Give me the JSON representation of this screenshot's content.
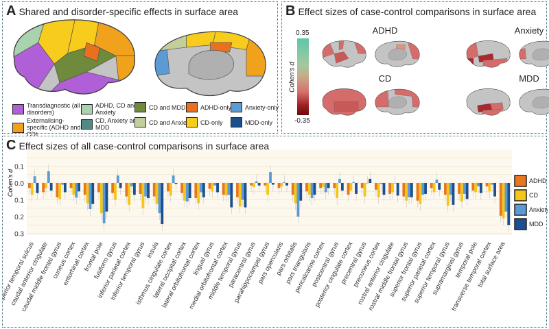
{
  "panelA": {
    "letter": "A",
    "title": "Shared and disorder-specific effects in surface area",
    "legend": [
      {
        "label": "Transdiagnostic (all disorders)",
        "color": "#b05fd6"
      },
      {
        "label": "Externalising-specific (ADHD and CD)",
        "color": "#f0a21c"
      },
      {
        "label": "ADHD, CD and Anxiety",
        "color": "#a9d2ae"
      },
      {
        "label": "CD, Anxiety and MDD",
        "color": "#4f8a86"
      },
      {
        "label": "CD and MDD",
        "color": "#6f8a3a"
      },
      {
        "label": "CD and Anxiety",
        "color": "#c2cf9a"
      },
      {
        "label": "ADHD-only",
        "color": "#e8701e"
      },
      {
        "label": "CD-only",
        "color": "#f7cc1c"
      },
      {
        "label": "Anxiety-only",
        "color": "#5b9bd5"
      },
      {
        "label": "MDD-only",
        "color": "#1b4f8e"
      }
    ]
  },
  "panelB": {
    "letter": "B",
    "title": "Effect sizes of case-control comparisons in surface area",
    "colorbar": {
      "label": "Cohen's d",
      "max": "0.35",
      "min": "-0.35"
    },
    "disorders": [
      "ADHD",
      "Anxiety",
      "CD",
      "MDD"
    ]
  },
  "panelC": {
    "letter": "C",
    "title": "Effect sizes of all case-control comparisons in surface area"
  },
  "chart_data": {
    "type": "bar",
    "ylabel": "Cohen's d",
    "ylim": [
      -0.3,
      0.15
    ],
    "yticks": [
      {
        "value": 0.1,
        "label": "0.1"
      },
      {
        "value": 0,
        "label": "0.0"
      },
      {
        "value": -0.1,
        "label": "0.1"
      },
      {
        "value": -0.2,
        "label": "0.2"
      },
      {
        "value": -0.3,
        "label": "0.3"
      }
    ],
    "grid": true,
    "legend_position": "right",
    "categories": [
      "banks superior temporal sulcus",
      "caudal anterior cingulate",
      "caudal middle frontal gyrus",
      "cuneus cortex",
      "entorhinal cortex",
      "frontal pole",
      "fusiform gyrus",
      "inferior parietal cortex",
      "inferior temporal gyrus",
      "insula",
      "isthmus cingulate cortex",
      "lateral occipital cortex",
      "lateral orbitofrontal cortex",
      "lingual gyrus",
      "medial orbitofrontal cortex",
      "middle temporal gyrus",
      "paracentral gyrus",
      "parahippocampal gyrus",
      "pars opercularis",
      "pars orbitalis",
      "pars triangularis",
      "pericalcarine cortex",
      "postcentral gyrus",
      "posterior cingulate cortex",
      "precentral gyrus",
      "precuneus cortex",
      "rostral anterior cingulate",
      "rostral middle frontal gyrus",
      "superior frontal gyrus",
      "superior parietal cortex",
      "superior temporal gyrus",
      "supramarginal gyrus",
      "temporal pole",
      "transverse temporal cortex",
      "total surface area"
    ],
    "series": [
      {
        "name": "ADHD",
        "color": "#e8761e",
        "values": [
          -0.03,
          -0.055,
          -0.085,
          -0.03,
          -0.07,
          -0.055,
          -0.06,
          -0.08,
          -0.065,
          -0.08,
          -0.05,
          -0.06,
          -0.09,
          -0.035,
          -0.07,
          -0.085,
          -0.015,
          -0.015,
          -0.03,
          -0.07,
          -0.05,
          -0.03,
          -0.03,
          -0.07,
          -0.03,
          -0.04,
          -0.065,
          -0.08,
          -0.105,
          -0.03,
          -0.07,
          -0.065,
          -0.045,
          -0.02,
          -0.195
        ]
      },
      {
        "name": "CD",
        "color": "#f5c518",
        "values": [
          -0.07,
          -0.03,
          -0.095,
          -0.07,
          -0.12,
          -0.18,
          -0.1,
          -0.13,
          -0.15,
          -0.125,
          -0.075,
          -0.105,
          -0.12,
          -0.05,
          -0.075,
          -0.14,
          -0.025,
          -0.07,
          -0.02,
          -0.12,
          -0.07,
          -0.025,
          -0.09,
          -0.045,
          -0.08,
          -0.085,
          -0.055,
          -0.105,
          -0.125,
          -0.055,
          -0.135,
          -0.11,
          -0.055,
          -0.05,
          -0.21
        ]
      },
      {
        "name": "Anxiety",
        "color": "#5b9bd5",
        "values": [
          0.04,
          0.07,
          -0.01,
          -0.087,
          -0.155,
          -0.24,
          0.045,
          -0.02,
          -0.08,
          -0.18,
          0.045,
          -0.11,
          -0.055,
          -0.015,
          -0.07,
          -0.1,
          0.01,
          0.065,
          0.005,
          -0.2,
          -0.09,
          -0.055,
          0.025,
          0.005,
          0.0,
          -0.005,
          0.0,
          -0.085,
          -0.07,
          0.02,
          -0.07,
          -0.065,
          -0.02,
          -0.01,
          -0.17
        ]
      },
      {
        "name": "MDD",
        "color": "#1b4f8e",
        "values": [
          -0.06,
          -0.045,
          -0.055,
          -0.05,
          -0.125,
          -0.17,
          -0.03,
          -0.07,
          -0.09,
          -0.245,
          -0.005,
          -0.09,
          -0.085,
          -0.055,
          -0.145,
          -0.145,
          -0.015,
          -0.01,
          -0.015,
          -0.105,
          -0.07,
          -0.03,
          -0.045,
          -0.065,
          0.025,
          -0.07,
          -0.075,
          -0.085,
          -0.065,
          -0.04,
          -0.13,
          -0.095,
          -0.06,
          -0.08,
          -0.25
        ]
      }
    ]
  }
}
